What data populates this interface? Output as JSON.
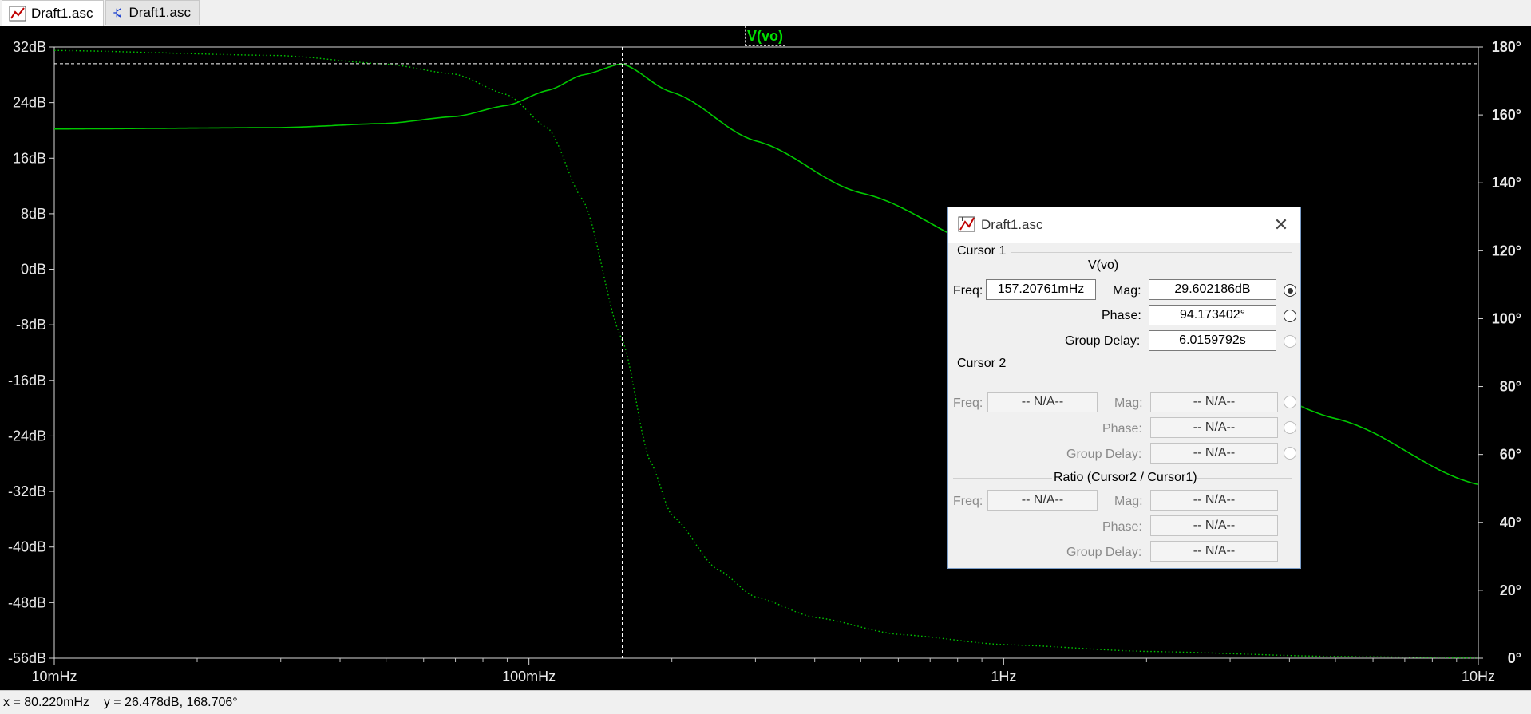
{
  "tabs": [
    {
      "label": "Draft1.asc",
      "icon": "waveform-icon"
    },
    {
      "label": "Draft1.asc",
      "icon": "schematic-icon"
    }
  ],
  "trace_label": "V(vo)",
  "status_bar": "x = 80.220mHz    y = 26.478dB, 168.706°",
  "chart_data": {
    "type": "line",
    "title": "V(vo)",
    "x_scale": "log",
    "x_ticks": [
      "10mHz",
      "100mHz",
      "1Hz",
      "10Hz"
    ],
    "xlim_hz": [
      0.01,
      10
    ],
    "y_left_ticks": [
      "32dB",
      "24dB",
      "16dB",
      "8dB",
      "0dB",
      "-8dB",
      "-16dB",
      "-24dB",
      "-32dB",
      "-40dB",
      "-48dB",
      "-56dB"
    ],
    "ylim_left_db": [
      -56,
      32
    ],
    "y_right_ticks": [
      "180°",
      "160°",
      "140°",
      "120°",
      "100°",
      "80°",
      "60°",
      "40°",
      "20°",
      "0°"
    ],
    "ylim_right_deg": [
      0,
      180
    ],
    "series": [
      {
        "name": "V(vo) magnitude",
        "color": "#00c800",
        "style": "solid",
        "axis": "left",
        "x_hz": [
          0.01,
          0.03,
          0.05,
          0.07,
          0.09,
          0.11,
          0.13,
          0.157,
          0.2,
          0.3,
          0.5,
          1,
          2,
          5,
          10
        ],
        "y_db": [
          20.2,
          20.4,
          21.0,
          22.0,
          23.6,
          25.8,
          28.0,
          29.6,
          25.5,
          18.5,
          11.0,
          2.0,
          -8.0,
          -21.5,
          -31.0
        ]
      },
      {
        "name": "V(vo) phase",
        "color": "#00c800",
        "style": "dotted",
        "axis": "right",
        "x_hz": [
          0.01,
          0.03,
          0.05,
          0.07,
          0.09,
          0.11,
          0.13,
          0.157,
          0.18,
          0.2,
          0.25,
          0.3,
          0.4,
          0.6,
          1,
          2,
          5,
          10
        ],
        "y_deg": [
          179,
          177.5,
          175,
          172,
          166,
          156,
          135,
          94,
          58,
          42,
          26,
          18,
          12,
          7,
          4,
          2,
          0.5,
          0.1
        ]
      }
    ],
    "cursor": {
      "x_hz": 0.15720761,
      "y_db": 29.602186
    }
  },
  "dialog": {
    "title": "Draft1.asc",
    "cursor1": {
      "group": "Cursor 1",
      "trace": "V(vo)",
      "freq_label": "Freq:",
      "freq": "157.20761mHz",
      "mag_label": "Mag:",
      "mag": "29.602186dB",
      "phase_label": "Phase:",
      "phase": "94.173402°",
      "gd_label": "Group Delay:",
      "gd": "6.0159792s"
    },
    "cursor2": {
      "group": "Cursor 2",
      "freq_label": "Freq:",
      "freq": "-- N/A--",
      "mag_label": "Mag:",
      "mag": "-- N/A--",
      "phase_label": "Phase:",
      "phase": "-- N/A--",
      "gd_label": "Group Delay:",
      "gd": "-- N/A--"
    },
    "ratio": {
      "group": "Ratio (Cursor2 / Cursor1)",
      "freq_label": "Freq:",
      "freq": "-- N/A--",
      "mag_label": "Mag:",
      "mag": "-- N/A--",
      "phase_label": "Phase:",
      "phase": "-- N/A--",
      "gd_label": "Group Delay:",
      "gd": "-- N/A--"
    }
  }
}
